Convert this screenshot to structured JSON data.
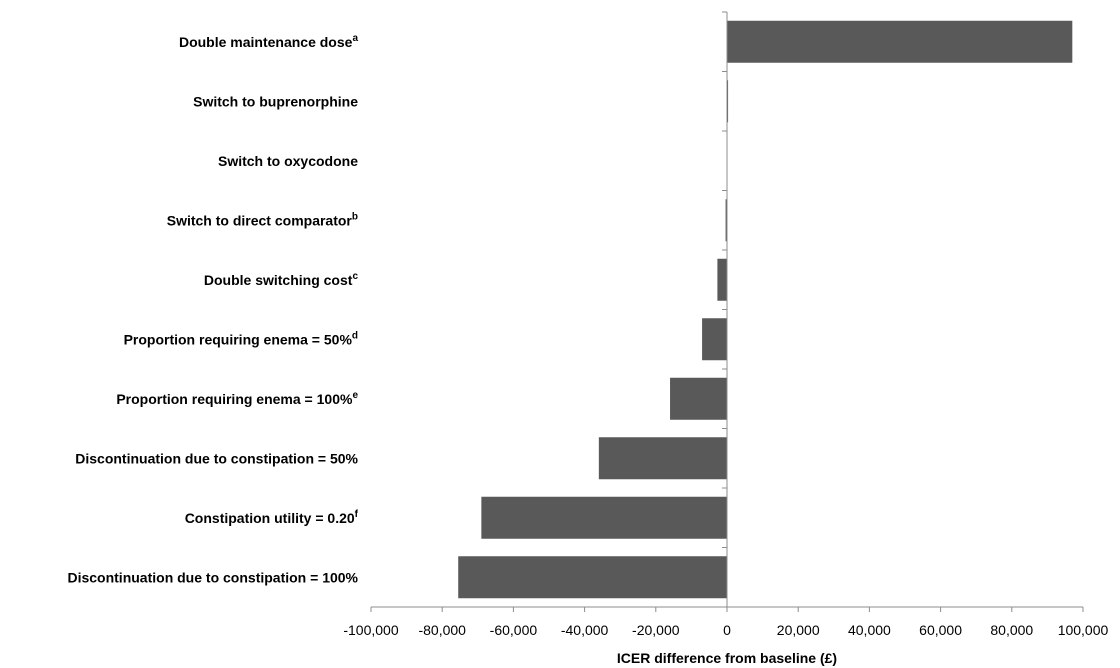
{
  "chart_data": {
    "type": "bar",
    "orientation": "horizontal",
    "title": "",
    "xlabel": "ICER difference from baseline (£)",
    "ylabel": "",
    "xlim": [
      -100000,
      100000
    ],
    "xticks": [
      -100000,
      -80000,
      -60000,
      -40000,
      -20000,
      0,
      20000,
      40000,
      60000,
      80000,
      100000
    ],
    "xtick_labels": [
      "-100,000",
      "-80,000",
      "-60,000",
      "-40,000",
      "-20,000",
      "0",
      "20,000",
      "40,000",
      "60,000",
      "80,000",
      "100,000"
    ],
    "grid": false,
    "legend": "none",
    "bar_color": "#595959",
    "categories": [
      {
        "label": "Double maintenance dose",
        "sup": "a"
      },
      {
        "label": "Switch to buprenorphine",
        "sup": ""
      },
      {
        "label": "Switch to oxycodone",
        "sup": ""
      },
      {
        "label": "Switch to direct comparator",
        "sup": "b"
      },
      {
        "label": "Double switching cost",
        "sup": "c"
      },
      {
        "label": "Proportion requiring enema = 50%",
        "sup": "d"
      },
      {
        "label": "Proportion requiring enema = 100%",
        "sup": "e"
      },
      {
        "label": "Discontinuation due to constipation = 50%",
        "sup": ""
      },
      {
        "label": "Constipation utility = 0.20",
        "sup": "f"
      },
      {
        "label": "Discontinuation due to constipation = 100%",
        "sup": ""
      }
    ],
    "values": [
      97000,
      300,
      0,
      -400,
      -2700,
      -7000,
      -16000,
      -36000,
      -69000,
      -75500
    ]
  }
}
